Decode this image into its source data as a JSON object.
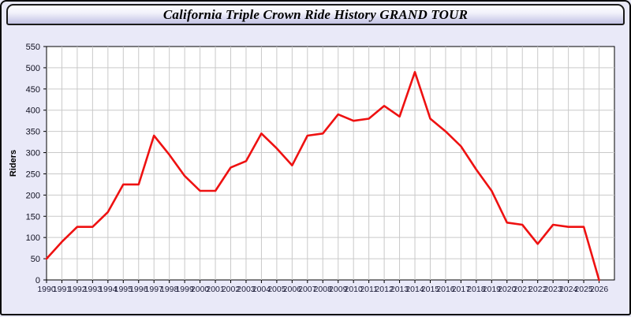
{
  "window": {
    "title": "California Triple Crown Ride History GRAND TOUR"
  },
  "colors": {
    "page_bg": "#E9E9F8",
    "titlebar_gradient_top": "#FEFEFF",
    "titlebar_gradient_bottom": "#C3C3E4",
    "plot_bg": "#FFFFFF",
    "grid": "#C9C9C9",
    "axis": "#000000",
    "line": "#EE1111",
    "x_tick_label": "#1c1c38",
    "y_tick_label": "#101020"
  },
  "chart_data": {
    "type": "line",
    "title": "California Triple Crown Ride History GRAND TOUR",
    "xlabel": "",
    "ylabel": "Riders",
    "x": [
      1990,
      1991,
      1992,
      1993,
      1994,
      1995,
      1996,
      1997,
      1998,
      1999,
      2000,
      2001,
      2002,
      2003,
      2004,
      2005,
      2006,
      2007,
      2008,
      2009,
      2010,
      2011,
      2012,
      2013,
      2014,
      2015,
      2016,
      2017,
      2018,
      2019,
      2020,
      2021,
      2022,
      2023,
      2024,
      2025,
      2026
    ],
    "series": [
      {
        "name": "Riders",
        "color": "#EE1111",
        "values": [
          50,
          90,
          125,
          125,
          160,
          225,
          225,
          340,
          295,
          245,
          210,
          210,
          265,
          280,
          345,
          310,
          270,
          340,
          345,
          390,
          375,
          380,
          410,
          385,
          490,
          380,
          350,
          315,
          260,
          210,
          135,
          130,
          85,
          130,
          125,
          125,
          0
        ]
      }
    ],
    "ylim": [
      0,
      550
    ],
    "ytick_step": 50,
    "grid": true,
    "legend": "none"
  }
}
